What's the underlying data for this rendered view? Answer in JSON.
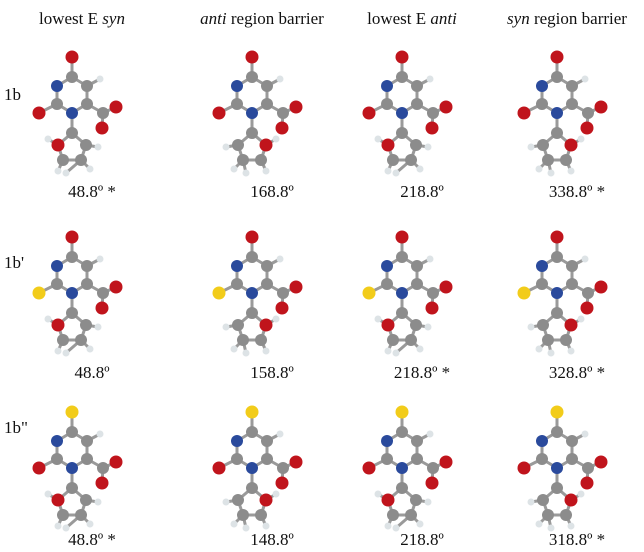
{
  "header": {
    "columns": [
      [
        {
          "text": "lowest E "
        },
        {
          "text": "syn",
          "italic": true
        }
      ],
      [
        {
          "text": "anti",
          "italic": true
        },
        {
          "text": " region barrier"
        }
      ],
      [
        {
          "text": "lowest E "
        },
        {
          "text": "anti",
          "italic": true
        }
      ],
      [
        {
          "text": "syn",
          "italic": true
        },
        {
          "text": " region barrier"
        }
      ]
    ]
  },
  "rows": [
    {
      "label": "1b",
      "angles": [
        "48.8º *",
        "168.8º",
        "218.8º",
        "338.8º *"
      ]
    },
    {
      "label": "1b'",
      "angles": [
        "48.8º",
        "158.8º",
        "218.8º *",
        "328.8º *"
      ]
    },
    {
      "label": "1b\"",
      "angles": [
        "48.8º *",
        "148.8º",
        "218.8º",
        "318.8º *"
      ]
    }
  ]
}
